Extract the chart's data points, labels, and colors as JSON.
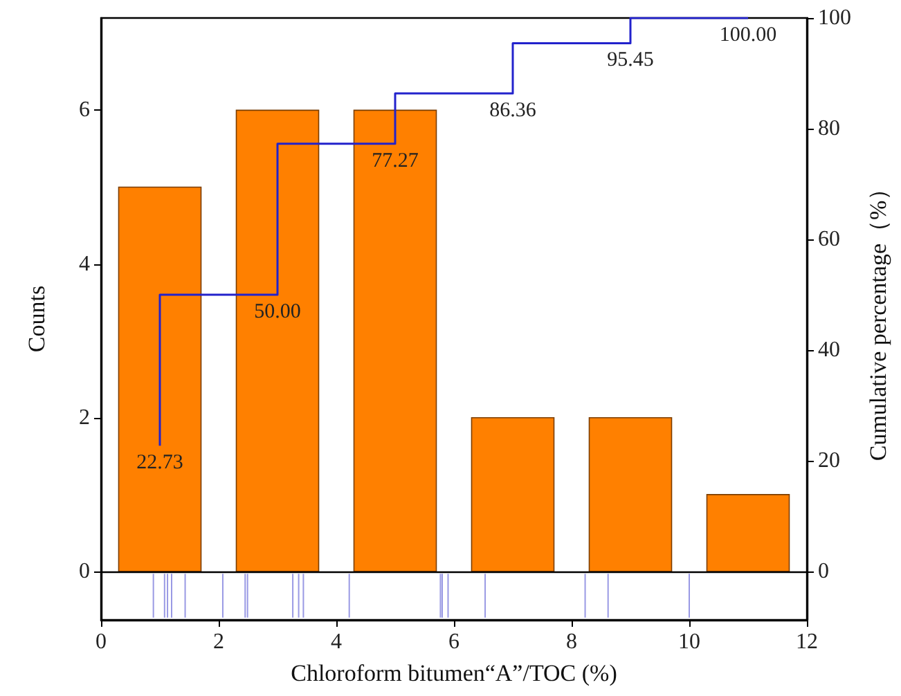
{
  "chart_data": {
    "type": "histogram",
    "xlabel": "Chloroform bitumen“A”/TOC (%)",
    "ylabel": "Counts",
    "y2label": "Cumulative percentage（%）",
    "bins": [
      0,
      2,
      4,
      6,
      8,
      10,
      12
    ],
    "values": [
      5,
      6,
      6,
      2,
      2,
      1
    ],
    "color": "#ff8000",
    "xlim": [
      0,
      12
    ],
    "xticks": [
      0,
      2,
      4,
      6,
      8,
      10,
      12
    ],
    "ylim": [
      -0.63,
      7.2
    ],
    "yticks": [
      0,
      2,
      4,
      6
    ],
    "y2lim": [
      -8.75,
      100
    ],
    "y2ticks": [
      0,
      20,
      40,
      60,
      80,
      100
    ],
    "series": [
      {
        "type": "step",
        "axis": "y2",
        "color": "#2222cc",
        "x": [
          1,
          3,
          5,
          7,
          9,
          11
        ],
        "values": [
          22.73,
          50,
          77.27,
          86.36,
          95.45,
          100
        ],
        "value_labels": [
          "22.73",
          "50.00",
          "77.27",
          "86.36",
          "95.45",
          "100.00"
        ]
      },
      {
        "type": "bar",
        "color": "#8080dd",
        "x": [
          0.89,
          1.08,
          1.13,
          1.2,
          1.43,
          2.07,
          2.45,
          2.49,
          3.26,
          3.36,
          3.44,
          4.22,
          5.77,
          5.8,
          5.9,
          6.53,
          8.23,
          8.62,
          10.0
        ],
        "base": [
          -0.6,
          -0.6,
          -0.6,
          -0.6,
          -0.6,
          -0.6,
          -0.6,
          -0.6,
          -0.6,
          -0.6,
          -0.6,
          -0.6,
          -0.6,
          -0.6,
          -0.6,
          -0.6,
          -0.6,
          -0.6,
          -0.6
        ],
        "values": [
          0.57,
          0.57,
          0.57,
          0.57,
          0.57,
          0.57,
          0.57,
          0.57,
          0.57,
          0.57,
          0.57,
          0.57,
          0.57,
          0.57,
          0.57,
          0.57,
          0.57,
          0.57,
          0.57
        ]
      }
    ],
    "ref_lines": [
      {
        "axis": "y",
        "value": 0,
        "color": "#000000"
      }
    ],
    "grid": false
  }
}
